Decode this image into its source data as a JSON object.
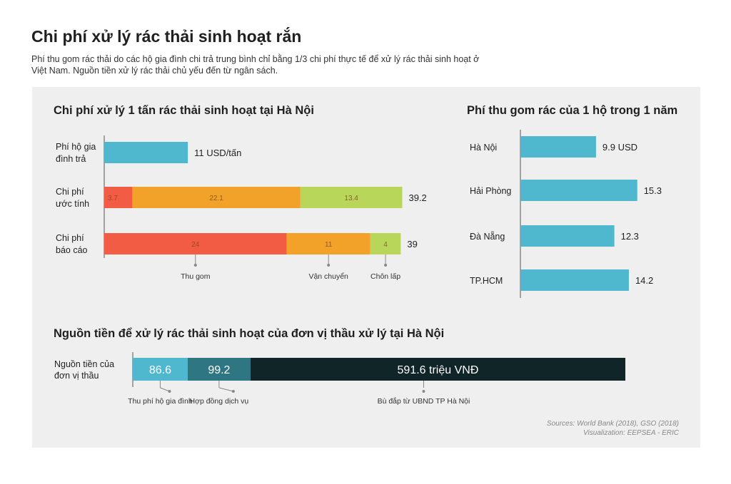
{
  "header": {
    "title": "Chi phí xử lý rác thải sinh hoạt rắn",
    "subtitle": "Phí thu gom rác thải do các hộ gia đình chi trả trung bình chỉ bằng 1/3 chi phí thực tế để xử lý rác thải sinh hoạt ở Việt Nam. Nguồn tiền xử lý rác thải chủ yếu đến từ ngân sách."
  },
  "footer": {
    "sources": "Sources: World Bank (2018), GSO (2018)",
    "visualization": "Visualization: EEPSEA - ERIC"
  },
  "colors": {
    "teal": "#4fb8cf",
    "red": "#f25c45",
    "orange": "#f2a229",
    "green": "#b8d65a",
    "dark_teal": "#2e7782",
    "navy": "#0f2528"
  },
  "chart_data": [
    {
      "type": "bar",
      "stacked": true,
      "orientation": "horizontal",
      "title": "Chi phí xử lý 1 tấn rác thải sinh hoạt tại Hà Nội",
      "categories": [
        "Phí hộ gia\nđình trả",
        "Chi phí\nước tính",
        "Chi phí\nbáo cáo"
      ],
      "series": [
        {
          "name": "",
          "values": [
            11,
            null,
            null
          ],
          "color": "#4fb8cf"
        },
        {
          "name": "Thu gom",
          "values": [
            null,
            3.7,
            24
          ],
          "color": "#f25c45"
        },
        {
          "name": "Vận chuyển",
          "values": [
            null,
            22.1,
            11
          ],
          "color": "#f2a229"
        },
        {
          "name": "Chôn lấp",
          "values": [
            null,
            13.4,
            4
          ],
          "color": "#b8d65a"
        }
      ],
      "totals": [
        "11 USD/tấn",
        "39.2",
        "39"
      ],
      "segment_labels": [
        [],
        [
          "3.7",
          "22.1",
          "13.4"
        ],
        [
          "24",
          "11",
          "4"
        ]
      ],
      "legend": [
        "Thu gom",
        "Vận chuyển",
        "Chôn lấp"
      ],
      "xlim": [
        0,
        40
      ]
    },
    {
      "type": "bar",
      "orientation": "horizontal",
      "title": "Phí thu gom rác của 1 hộ trong 1 năm",
      "categories": [
        "Hà Nội",
        "Hải Phòng",
        "Đà Nẵng",
        "TP.HCM"
      ],
      "values": [
        9.9,
        15.3,
        12.3,
        14.2
      ],
      "value_labels": [
        "9.9 USD",
        "15.3",
        "12.3",
        "14.2"
      ],
      "color": "#4fb8cf",
      "xlim": [
        0,
        16
      ]
    },
    {
      "type": "bar",
      "stacked": true,
      "orientation": "horizontal",
      "title": "Nguồn tiền để xử lý rác thải sinh hoạt của đơn vị thầu xử lý tại Hà Nội",
      "categories": [
        "Nguồn tiền của\nđơn vị thầu"
      ],
      "series": [
        {
          "name": "Thu phí hộ gia đình",
          "values": [
            86.6
          ],
          "label": "86.6",
          "color": "#4fb8cf"
        },
        {
          "name": "Hợp đồng dịch vụ",
          "values": [
            99.2
          ],
          "label": "99.2",
          "color": "#2e7782"
        },
        {
          "name": "Bù đắp từ UBND TP Hà Nội",
          "values": [
            591.6
          ],
          "label": "591.6 triệu VNĐ",
          "color": "#0f2528"
        }
      ]
    }
  ]
}
